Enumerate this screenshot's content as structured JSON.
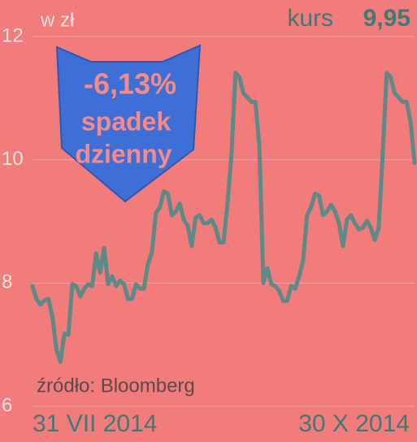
{
  "chart_data": {
    "type": "line",
    "unit_label": "w zł",
    "current_label": "kurs",
    "current_value": "9,95",
    "callout": {
      "change": "-6,13%",
      "line1": "spadek",
      "line2": "dzienny"
    },
    "source": "źródło: Bloomberg",
    "categories": [
      "31 VII 2014",
      null,
      null,
      null,
      null,
      null,
      null,
      null,
      null,
      null,
      null,
      null,
      null,
      null,
      null,
      null,
      null,
      null,
      null,
      null,
      null,
      null,
      null,
      null,
      null,
      null,
      null,
      null,
      null,
      null,
      null,
      null,
      null,
      null,
      null,
      null,
      null,
      null,
      null,
      null,
      null,
      null,
      null,
      null,
      null,
      null,
      null,
      null,
      null,
      null,
      null,
      null,
      null,
      null,
      null,
      null,
      null,
      null,
      null,
      null,
      null,
      null,
      null,
      null,
      null,
      null,
      null,
      null,
      null,
      null,
      null,
      null,
      null,
      null,
      null,
      null,
      null,
      null,
      null,
      null,
      null,
      null,
      null,
      null,
      null,
      null,
      null,
      null,
      null,
      null,
      null,
      null,
      null,
      null,
      null,
      null,
      "30 X 2014"
    ],
    "series": [
      {
        "name": "kurs",
        "color": "#5d8a86",
        "values": [
          7.95,
          7.74,
          7.65,
          7.72,
          7.74,
          7.45,
          6.92,
          6.72,
          7.18,
          7.16,
          7.98,
          7.95,
          7.78,
          7.91,
          7.98,
          7.95,
          8.48,
          8.17,
          8.57,
          7.98,
          8.11,
          7.95,
          8.04,
          7.98,
          7.74,
          7.74,
          7.98,
          7.91,
          7.91,
          8.31,
          8.5,
          9.14,
          9.23,
          9.49,
          9.45,
          9.1,
          9.16,
          9.29,
          9.03,
          8.93,
          8.6,
          9.06,
          9.1,
          8.97,
          8.97,
          9.03,
          8.9,
          8.66,
          8.66,
          9.29,
          10.09,
          11.41,
          11.34,
          11.08,
          11.01,
          10.94,
          10.94,
          10.22,
          8.0,
          8.24,
          7.98,
          7.95,
          7.87,
          7.71,
          7.71,
          7.95,
          7.91,
          8.11,
          8.37,
          9.1,
          9.23,
          9.45,
          9.42,
          9.1,
          9.16,
          9.27,
          9.16,
          8.97,
          8.6,
          9.03,
          9.1,
          8.97,
          8.87,
          8.9,
          9.01,
          8.9,
          8.7,
          8.9,
          10.09,
          11.41,
          11.34,
          11.08,
          11.01,
          10.94,
          10.94,
          10.61,
          9.95
        ]
      }
    ],
    "ylim": [
      6,
      12
    ],
    "yticks": [
      6,
      8,
      10,
      12
    ],
    "grid": true,
    "background": "#f27b7b"
  }
}
